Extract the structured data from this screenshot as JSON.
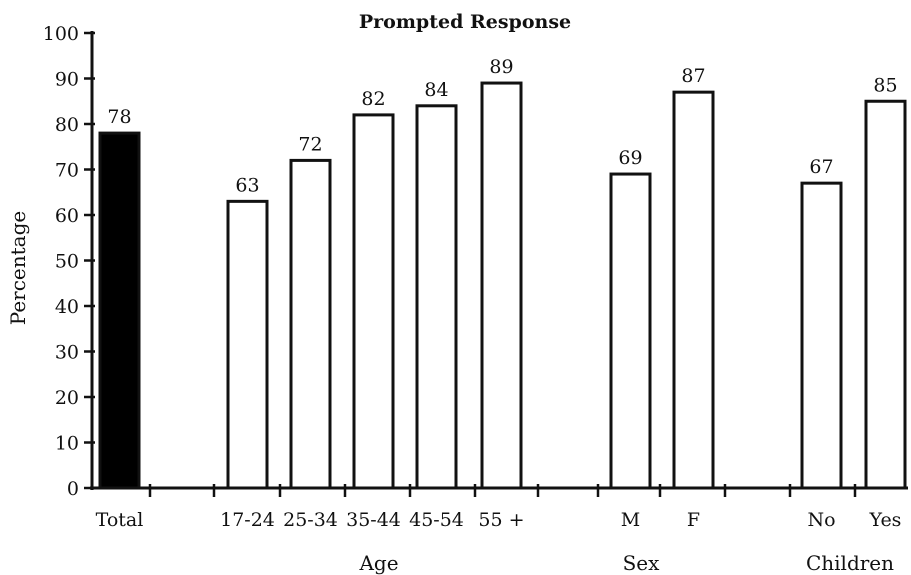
{
  "chart_data": {
    "type": "bar",
    "title": "Prompted Response",
    "ylabel": "Percentage",
    "xlabel": "",
    "ylim": [
      0,
      100
    ],
    "yticks": [
      0,
      10,
      20,
      30,
      40,
      50,
      60,
      70,
      80,
      90,
      100
    ],
    "grid": false,
    "categories": [
      "Total",
      "17-24",
      "25-34",
      "35-44",
      "45-54",
      "55 +",
      "M",
      "F",
      "No",
      "Yes"
    ],
    "values": [
      78,
      63,
      72,
      82,
      84,
      89,
      69,
      87,
      67,
      85
    ],
    "groups": [
      {
        "label": "",
        "members": [
          "Total"
        ]
      },
      {
        "label": "Age",
        "members": [
          "17-24",
          "25-34",
          "35-44",
          "45-54",
          "55 +"
        ]
      },
      {
        "label": "Sex",
        "members": [
          "M",
          "F"
        ]
      },
      {
        "label": "Children",
        "members": [
          "No",
          "Yes"
        ]
      }
    ],
    "bar_styles": [
      "filled",
      "outline",
      "outline",
      "outline",
      "outline",
      "outline",
      "outline",
      "outline",
      "outline",
      "outline"
    ],
    "colors": {
      "filled": "#000000",
      "outline_fill": "#ffffff",
      "stroke": "#111111"
    }
  }
}
